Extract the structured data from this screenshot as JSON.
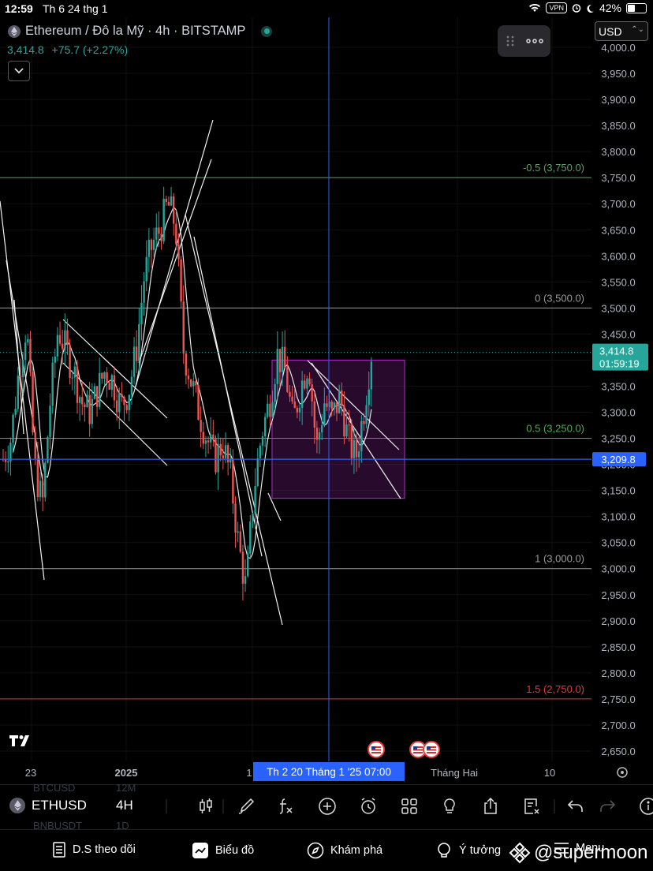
{
  "status_bar": {
    "time": "12:59",
    "date": "Th 6 24 thg 1",
    "vpn": "VPN",
    "battery": "42%"
  },
  "header": {
    "symbol_title": "Ethereum / Đô la Mỹ · 4h · BITSTAMP",
    "last_price": "3,414.8",
    "change": "+75.7 (+2.27%)",
    "currency": "USD"
  },
  "chart_data": {
    "type": "candlestick",
    "symbol": "ETHUSD",
    "interval": "4H",
    "exchange": "BITSTAMP",
    "price_axis_labels": [
      "4,000.0",
      "3,950.0",
      "3,900.0",
      "3,850.0",
      "3,800.0",
      "3,750.0",
      "3,700.0",
      "3,650.0",
      "3,600.0",
      "3,550.0",
      "3,500.0",
      "3,450.0",
      "3,400.0",
      "3,350.0",
      "3,300.0",
      "3,250.0",
      "3,200.0",
      "3,150.0",
      "3,100.0",
      "3,050.0",
      "3,000.0",
      "2,950.0",
      "2,900.0",
      "2,850.0",
      "2,800.0",
      "2,750.0",
      "2,700.0",
      "2,650.0"
    ],
    "price_values": [
      4000,
      3950,
      3900,
      3850,
      3800,
      3750,
      3700,
      3650,
      3600,
      3550,
      3500,
      3450,
      3400,
      3350,
      3300,
      3250,
      3200,
      3150,
      3100,
      3050,
      3000,
      2950,
      2900,
      2850,
      2800,
      2750,
      2700,
      2650
    ],
    "time_labels": [
      "23",
      "2025",
      "1",
      "Tháng Hai",
      "10"
    ],
    "crosshair_label": "Th 2 20 Tháng 1 '25   07:00",
    "fib_levels": [
      {
        "label": "-0.5 (3,750.0)",
        "price": 3750,
        "color": "#5f9e6e"
      },
      {
        "label": "0 (3,500.0)",
        "price": 3500,
        "color": "#9a9a9a"
      },
      {
        "label": "0.5 (3,250.0)",
        "price": 3250,
        "color": "#4caf50"
      },
      {
        "label": "1 (3,000.0)",
        "price": 3000,
        "color": "#9a9a9a"
      },
      {
        "label": "1.5 (2,750.0)",
        "price": 2750,
        "color": "#e53935"
      }
    ],
    "horizontal_line": {
      "price": 3209.8,
      "label": "3,209.8",
      "color": "#2962ff"
    },
    "last_price_tag": {
      "price": 3414.8,
      "label": "3,414.8",
      "countdown": "01:59:19",
      "color": "#26a69a"
    },
    "highlight_box": {
      "from_price": 3400,
      "to_price": 3135,
      "color": "#9c27b0"
    },
    "ohlc_path": [
      3210,
      3250,
      3380,
      3470,
      3200,
      3120,
      3320,
      3460,
      3420,
      3380,
      3320,
      3300,
      3340,
      3380,
      3360,
      3310,
      3340,
      3420,
      3560,
      3620,
      3650,
      3700,
      3660,
      3420,
      3360,
      3300,
      3250,
      3210,
      3240,
      3180,
      3050,
      2960,
      3150,
      3260,
      3320,
      3410,
      3380,
      3280,
      3350,
      3400,
      3230,
      3320,
      3290,
      3330,
      3250,
      3210,
      3300,
      3414.8
    ],
    "colors": {
      "up": "#26a69a",
      "down": "#ef5350",
      "crosshair": "#2962ff",
      "background": "#000000"
    }
  },
  "toolbar": {
    "symbol": "ETHUSD",
    "interval": "4H",
    "ghost_top": [
      "BTCUSD",
      "12M"
    ],
    "ghost_bottom": [
      "BNBUSDT",
      "1D"
    ]
  },
  "tabs": [
    {
      "label": "D.S theo dõi",
      "icon": "watchlist-icon"
    },
    {
      "label": "Biểu đồ",
      "icon": "chart-icon"
    },
    {
      "label": "Khám phá",
      "icon": "compass-icon"
    },
    {
      "label": "Ý tưởng",
      "icon": "lightbulb-icon"
    },
    {
      "label": "Menu",
      "icon": "menu-icon"
    }
  ],
  "watermark": "@supermoon"
}
